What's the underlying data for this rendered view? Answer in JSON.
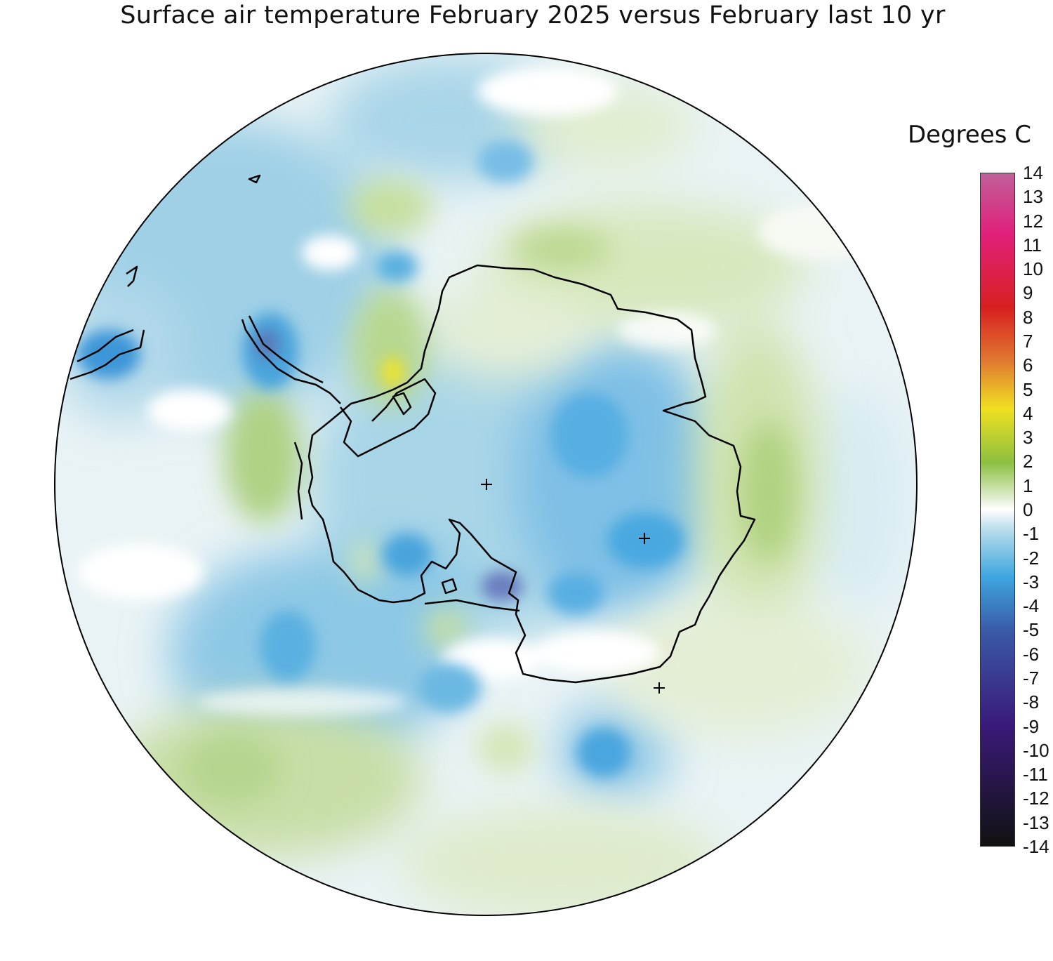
{
  "title": "Surface air temperature February 2025 versus February last 10 yr",
  "legend": {
    "title": "Degrees C",
    "ticks": [
      "14",
      "13",
      "12",
      "11",
      "10",
      "9",
      "8",
      "7",
      "6",
      "5",
      "4",
      "3",
      "2",
      "1",
      "0",
      "-1",
      "-2",
      "-3",
      "-4",
      "-5",
      "-6",
      "-7",
      "-8",
      "-9",
      "-10",
      "-11",
      "-12",
      "-13",
      "-14"
    ],
    "colors": {
      "top": "#c0609a",
      "pink": "#e0207a",
      "red": "#d82020",
      "orange": "#e07a30",
      "yellow": "#f0e020",
      "green_strong": "#8cc040",
      "green_light": "#dcebc8",
      "zero": "#ffffff",
      "blue_light": "#b8dcea",
      "blue": "#3ea6e0",
      "blue_dark": "#3a5aa8",
      "purple": "#3a1a7a",
      "black": "#111111"
    }
  },
  "map": {
    "projection": "south polar stereographic",
    "pole_markers": [
      "south-pole-marker",
      "marker-east",
      "marker-coast"
    ]
  }
}
